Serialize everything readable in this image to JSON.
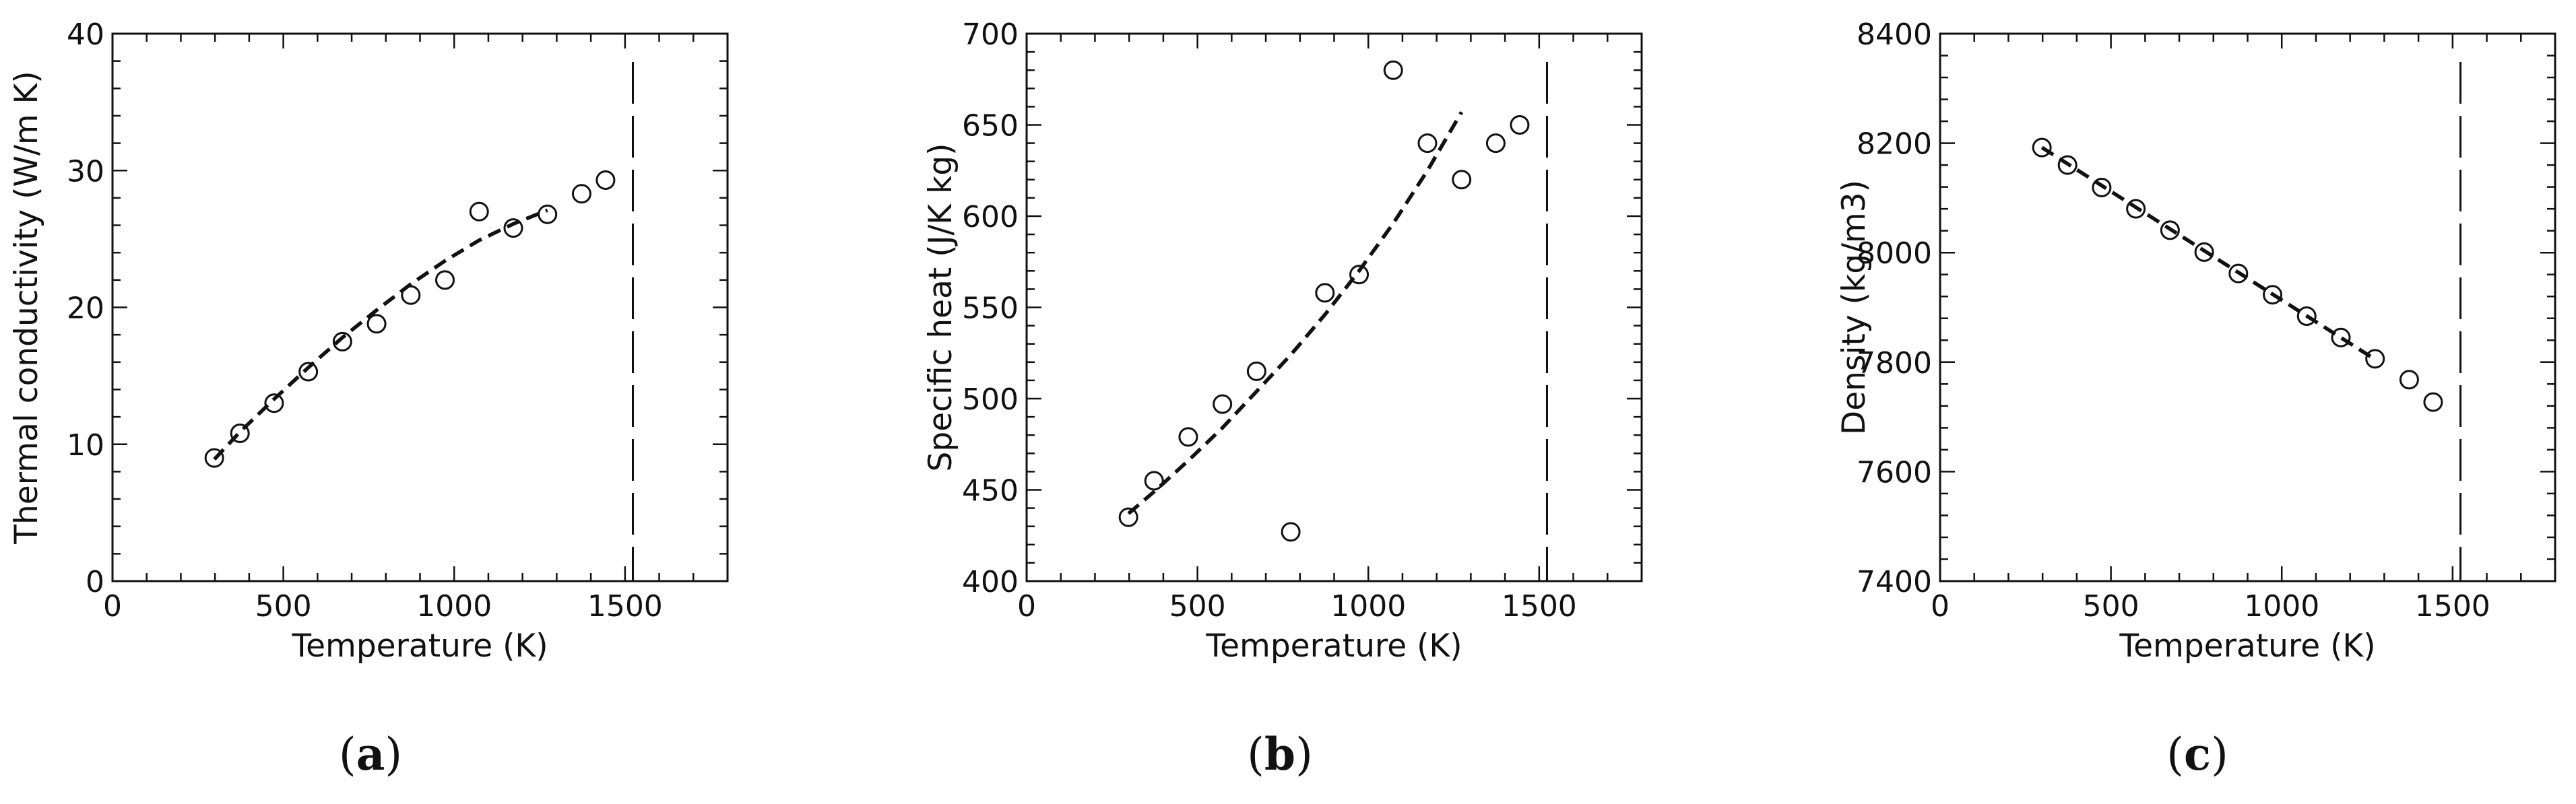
{
  "chart_data": [
    {
      "type": "scatter",
      "panel_label": "a",
      "xlabel": "Temperature (K)",
      "ylabel": "Thermal conductivity (W/m K)",
      "xlim": [
        0,
        1800
      ],
      "ylim": [
        0,
        40
      ],
      "xticks": [
        0,
        500,
        1000,
        1500
      ],
      "yticks": [
        0,
        10,
        20,
        30,
        40
      ],
      "grid": false,
      "reference_line_x": 1523,
      "points": {
        "x": [
          298,
          373,
          473,
          573,
          673,
          773,
          873,
          973,
          1073,
          1173,
          1273,
          1373,
          1443
        ],
        "y": [
          9.0,
          10.8,
          13.0,
          15.3,
          17.5,
          18.8,
          20.9,
          22.0,
          27.0,
          25.8,
          26.8,
          28.3,
          29.3
        ]
      },
      "fit_curve": {
        "x": [
          298,
          373,
          473,
          573,
          673,
          773,
          873,
          973,
          1073,
          1173,
          1273
        ],
        "y": [
          8.9,
          10.9,
          13.3,
          15.6,
          17.8,
          19.8,
          21.7,
          23.4,
          24.9,
          26.1,
          27.1
        ]
      }
    },
    {
      "type": "scatter",
      "panel_label": "b",
      "xlabel": "Temperature (K)",
      "ylabel": "Specific heat (J/K kg)",
      "xlim": [
        0,
        1800
      ],
      "ylim": [
        400,
        700
      ],
      "xticks": [
        0,
        500,
        1000,
        1500
      ],
      "yticks": [
        400,
        450,
        500,
        550,
        600,
        650,
        700
      ],
      "grid": false,
      "reference_line_x": 1523,
      "points": {
        "x": [
          298,
          373,
          473,
          573,
          673,
          773,
          873,
          973,
          1073,
          1173,
          1273,
          1373,
          1443
        ],
        "y": [
          435,
          455,
          479,
          497,
          515,
          427,
          558,
          568,
          680,
          640,
          620,
          640,
          650
        ]
      },
      "fit_curve": {
        "x": [
          298,
          373,
          473,
          573,
          673,
          773,
          873,
          973,
          1073,
          1173,
          1273
        ],
        "y": [
          437,
          449,
          466,
          484,
          504,
          524,
          546,
          570,
          596,
          625,
          657
        ]
      }
    },
    {
      "type": "scatter",
      "panel_label": "c",
      "xlabel": "Temperature (K)",
      "ylabel": "Density (kg/m3)",
      "xlim": [
        0,
        1800
      ],
      "ylim": [
        7400,
        8400
      ],
      "xticks": [
        0,
        500,
        1000,
        1500
      ],
      "yticks": [
        7400,
        7600,
        7800,
        8000,
        8200,
        8400
      ],
      "grid": false,
      "reference_line_x": 1523,
      "points": {
        "x": [
          298,
          373,
          473,
          573,
          673,
          773,
          873,
          973,
          1073,
          1173,
          1273,
          1373,
          1443
        ],
        "y": [
          8192,
          8160,
          8119,
          8080,
          8041,
          8001,
          7962,
          7923,
          7884,
          7845,
          7806,
          7768,
          7727
        ]
      },
      "fit_curve": {
        "x": [
          298,
          1273
        ],
        "y": [
          8192,
          7805
        ]
      }
    }
  ]
}
